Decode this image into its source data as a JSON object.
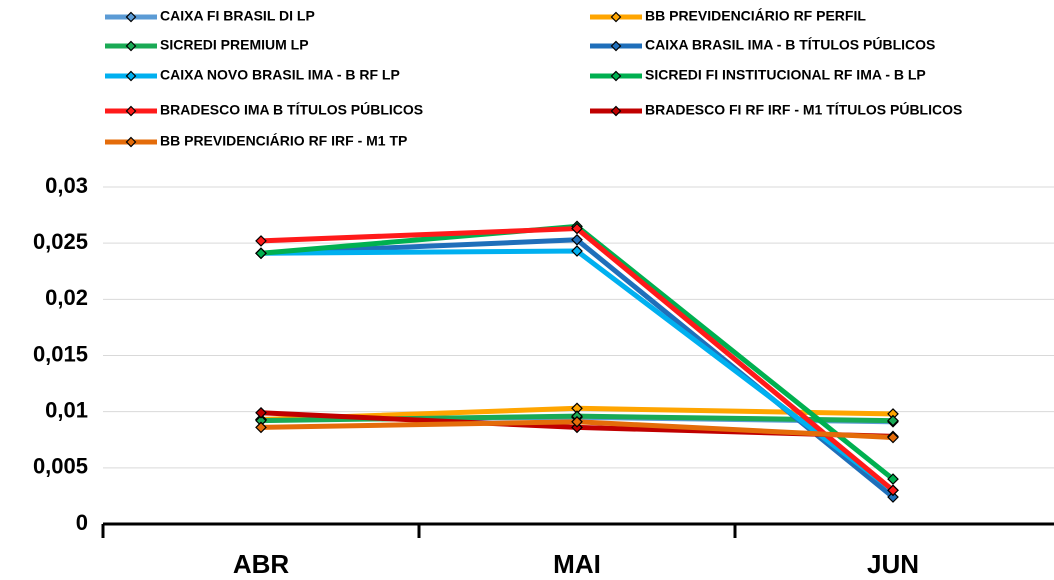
{
  "chart_data": {
    "type": "line",
    "categories": [
      "ABR",
      "MAI",
      "JUN"
    ],
    "series": [
      {
        "name": "CAIXA FI BRASIL DI LP",
        "color": "#5b9bd5",
        "values": [
          0.0093,
          0.0095,
          0.0091
        ]
      },
      {
        "name": "BB PREVIDENCIÁRIO RF PERFIL",
        "color": "#ffa500",
        "values": [
          0.0093,
          0.0103,
          0.0098
        ]
      },
      {
        "name": "SICREDI PREMIUM LP",
        "color": "#1aaa55",
        "values": [
          0.0092,
          0.0096,
          0.0092
        ]
      },
      {
        "name": "CAIXA BRASIL IMA - B TÍTULOS PÚBLICOS",
        "color": "#1f6fba",
        "values": [
          0.0241,
          0.0253,
          0.0024
        ]
      },
      {
        "name": "CAIXA NOVO BRASIL IMA - B RF LP",
        "color": "#00b0f0",
        "values": [
          0.0241,
          0.0243,
          0.003
        ]
      },
      {
        "name": "SICREDI FI INSTITUCIONAL RF IMA - B LP",
        "color": "#00b050",
        "values": [
          0.0241,
          0.0265,
          0.004
        ]
      },
      {
        "name": "BRADESCO IMA B TÍTULOS PÚBLICOS",
        "color": "#ff1a1a",
        "values": [
          0.0252,
          0.0263,
          0.003
        ]
      },
      {
        "name": "BRADESCO FI RF IRF - M1 TÍTULOS PÚBLICOS",
        "color": "#c00000",
        "values": [
          0.0099,
          0.0086,
          0.0078
        ]
      },
      {
        "name": "BB PREVIDENCIÁRIO RF IRF - M1 TP",
        "color": "#e46c0a",
        "values": [
          0.0086,
          0.0091,
          0.0077
        ]
      }
    ],
    "ylim": [
      0,
      0.03
    ],
    "yticks": [
      0,
      {
        "value": 0.005,
        "label": "0,005"
      },
      {
        "value": 0.01,
        "label": "0,01"
      },
      {
        "value": 0.015,
        "label": "0,015"
      },
      {
        "value": 0.02,
        "label": "0,02"
      },
      {
        "value": 0.025,
        "label": "0,025"
      },
      {
        "value": 0.03,
        "label": "0,03"
      }
    ],
    "grid": true
  }
}
